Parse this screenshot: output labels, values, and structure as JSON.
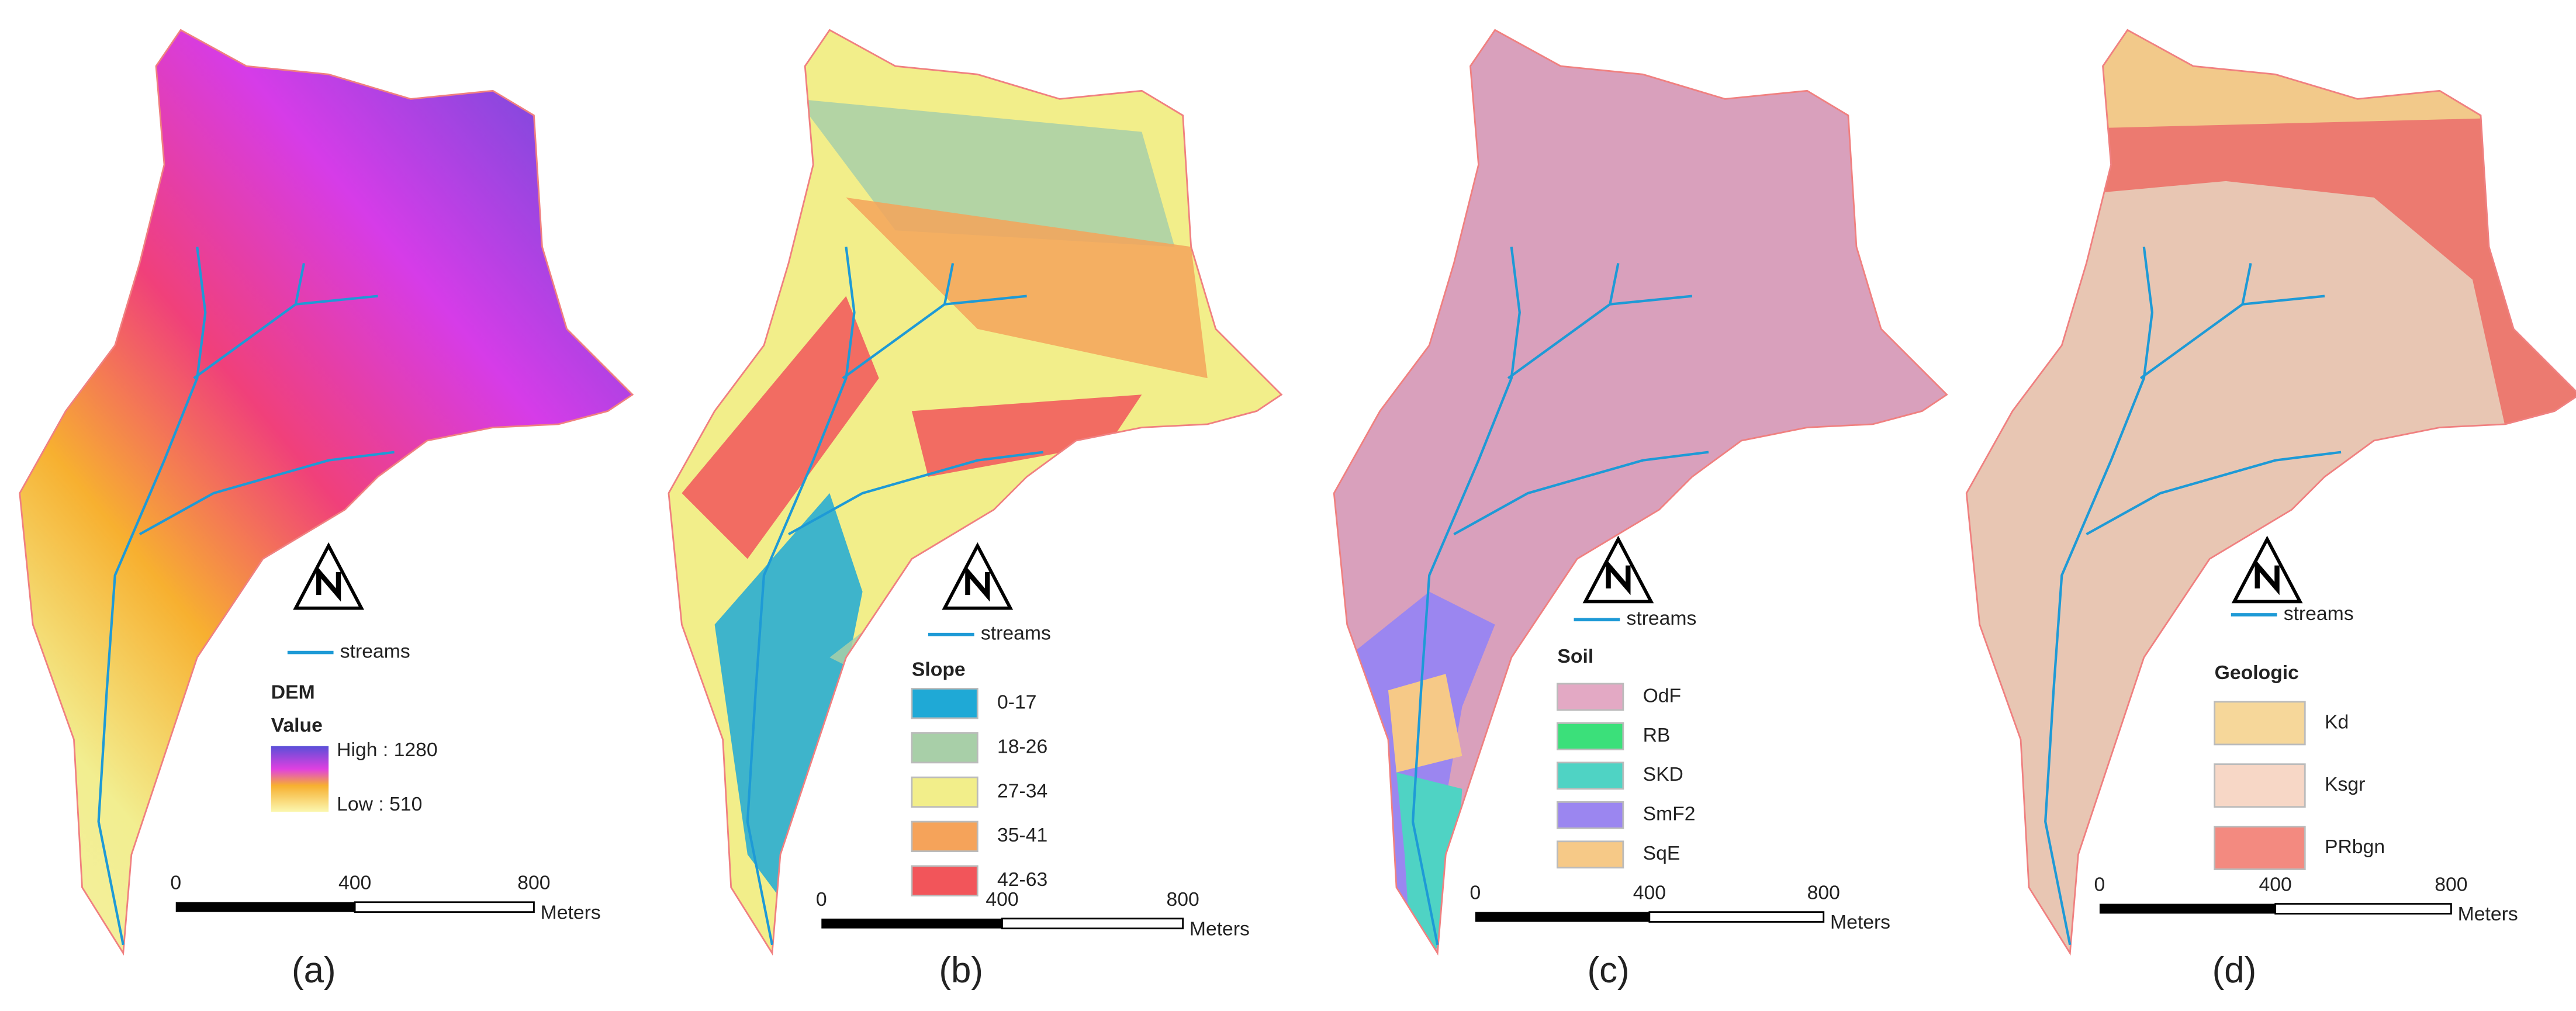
{
  "panels": [
    {
      "caption": "(a)",
      "streams_label": "streams",
      "legend": {
        "title": "DEM",
        "subtitle": "Value",
        "high": "High : 1280",
        "low": "Low : 510"
      },
      "scale": {
        "ticks": [
          "0",
          "400",
          "800"
        ],
        "unit": "Meters"
      }
    },
    {
      "caption": "(b)",
      "streams_label": "streams",
      "legend": {
        "title": "Slope",
        "items": [
          {
            "label": "0-17",
            "color": "#1fa9d6"
          },
          {
            "label": "18-26",
            "color": "#a8cfa8"
          },
          {
            "label": "27-34",
            "color": "#f2ee8a"
          },
          {
            "label": "35-41",
            "color": "#f5a35a"
          },
          {
            "label": "42-63",
            "color": "#f2555a"
          }
        ]
      },
      "scale": {
        "ticks": [
          "0",
          "400",
          "800"
        ],
        "unit": "Meters"
      }
    },
    {
      "caption": "(c)",
      "streams_label": "streams",
      "legend": {
        "title": "Soil",
        "items": [
          {
            "label": "OdF",
            "color": "#e3a9c4"
          },
          {
            "label": "RB",
            "color": "#3be07a"
          },
          {
            "label": "SKD",
            "color": "#4fd3c4"
          },
          {
            "label": "SmF2",
            "color": "#9b86f0"
          },
          {
            "label": "SqE",
            "color": "#f6c987"
          }
        ]
      },
      "scale": {
        "ticks": [
          "0",
          "400",
          "800"
        ],
        "unit": "Meters"
      }
    },
    {
      "caption": "(d)",
      "streams_label": "streams",
      "legend": {
        "title": "Geologic",
        "items": [
          {
            "label": "Kd",
            "color": "#f6d79a"
          },
          {
            "label": "Ksgr",
            "color": "#f7d7c6"
          },
          {
            "label": "PRbgn",
            "color": "#f38a80"
          }
        ]
      },
      "scale": {
        "ticks": [
          "0",
          "400",
          "800"
        ],
        "unit": "Meters"
      }
    }
  ]
}
